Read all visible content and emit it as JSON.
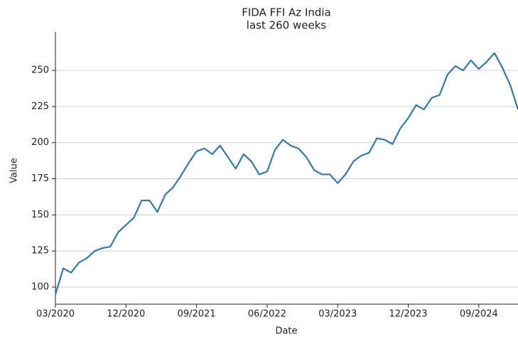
{
  "chart_data": {
    "type": "line",
    "title": "FIDA FFI Az India",
    "subtitle": "last 260 weeks",
    "x_label": "Date",
    "y_label": "Value",
    "x": [
      "2020-03",
      "2020-04",
      "2020-05",
      "2020-06",
      "2020-07",
      "2020-08",
      "2020-09",
      "2020-10",
      "2020-11",
      "2020-12",
      "2021-01",
      "2021-02",
      "2021-03",
      "2021-04",
      "2021-05",
      "2021-06",
      "2021-07",
      "2021-08",
      "2021-09",
      "2021-10",
      "2021-11",
      "2021-12",
      "2022-01",
      "2022-02",
      "2022-03",
      "2022-04",
      "2022-05",
      "2022-06",
      "2022-07",
      "2022-08",
      "2022-09",
      "2022-10",
      "2022-11",
      "2022-12",
      "2023-01",
      "2023-02",
      "2023-03",
      "2023-04",
      "2023-05",
      "2023-06",
      "2023-07",
      "2023-08",
      "2023-09",
      "2023-10",
      "2023-11",
      "2023-12",
      "2024-01",
      "2024-02",
      "2024-03",
      "2024-04",
      "2024-05",
      "2024-06",
      "2024-07",
      "2024-08",
      "2024-09",
      "2024-10",
      "2024-11",
      "2024-12",
      "2025-01",
      "2025-02"
    ],
    "series": [
      {
        "name": "Value",
        "color": "#2b7bba",
        "values": [
          95,
          113,
          110,
          117,
          120,
          125,
          127,
          128,
          138,
          143,
          148,
          160,
          160,
          152,
          164,
          169,
          177,
          186,
          194,
          196,
          192,
          198,
          190,
          182,
          192,
          187,
          178,
          180,
          195,
          202,
          198,
          196,
          190,
          181,
          178,
          178,
          172,
          178,
          187,
          191,
          193,
          203,
          202,
          199,
          210,
          217,
          226,
          223,
          231,
          233,
          247,
          253,
          250,
          257,
          251,
          256,
          262,
          252,
          240,
          223
        ]
      }
    ],
    "xlim": [
      "2020-03",
      "2025-02"
    ],
    "xticks": [
      {
        "value": "2020-03",
        "label": "03/2020"
      },
      {
        "value": "2020-12",
        "label": "12/2020"
      },
      {
        "value": "2021-09",
        "label": "09/2021"
      },
      {
        "value": "2022-06",
        "label": "06/2022"
      },
      {
        "value": "2023-03",
        "label": "03/2023"
      },
      {
        "value": "2023-12",
        "label": "12/2023"
      },
      {
        "value": "2024-09",
        "label": "09/2024"
      }
    ],
    "ylim": [
      88.2,
      276.6
    ],
    "yticks": [
      100,
      125,
      150,
      175,
      200,
      225,
      250
    ],
    "grid": true
  }
}
